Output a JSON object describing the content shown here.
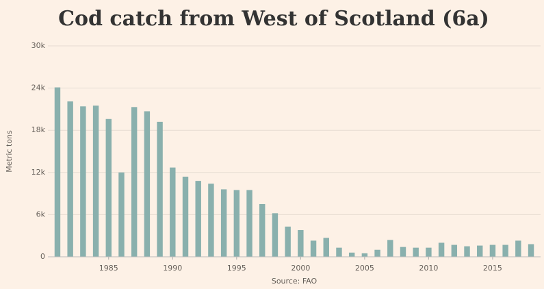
{
  "chart_data": {
    "type": "bar",
    "title": "Cod catch from West of Scotland (6a)",
    "y_label": "Metric tons",
    "source": "Source: FAO",
    "x": [
      1981,
      1982,
      1983,
      1984,
      1985,
      1986,
      1987,
      1988,
      1989,
      1990,
      1991,
      1992,
      1993,
      1994,
      1995,
      1996,
      1997,
      1998,
      1999,
      2000,
      2001,
      2002,
      2003,
      2004,
      2005,
      2006,
      2007,
      2008,
      2009,
      2010,
      2011,
      2012,
      2013,
      2014,
      2015,
      2016,
      2017,
      2018
    ],
    "values": [
      24100,
      22100,
      21400,
      21500,
      19600,
      12000,
      21300,
      20700,
      19200,
      12700,
      11400,
      10800,
      10400,
      9600,
      9500,
      9500,
      7500,
      6200,
      4300,
      3800,
      2300,
      2700,
      1300,
      600,
      500,
      1000,
      2400,
      1400,
      1300,
      1300,
      2000,
      1700,
      1500,
      1600,
      1700,
      1700,
      2300,
      1800
    ],
    "color": "#89b0ad",
    "xlim": [
      1980.5,
      2018.5
    ],
    "xticks": [
      1985,
      1990,
      1995,
      2000,
      2005,
      2010,
      2015
    ],
    "ylim": [
      0,
      30000
    ],
    "yticks": [
      {
        "value": 0,
        "label": "0"
      },
      {
        "value": 6000,
        "label": "6k"
      },
      {
        "value": 12000,
        "label": "12k"
      },
      {
        "value": 18000,
        "label": "18k"
      },
      {
        "value": 24000,
        "label": "24k"
      },
      {
        "value": 30000,
        "label": "30k"
      }
    ],
    "grid": true
  }
}
